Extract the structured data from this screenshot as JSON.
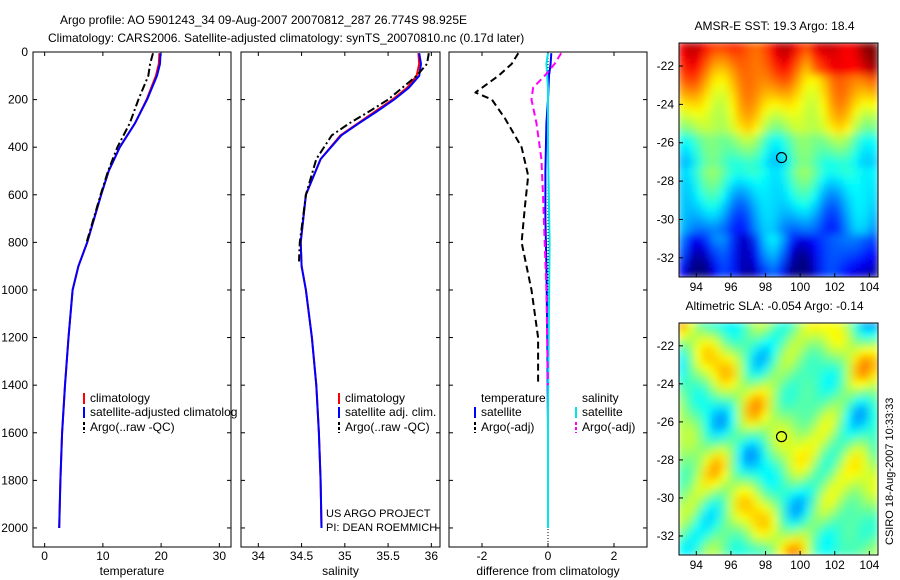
{
  "figure": {
    "title_line1": "Argo profile: AO 5901243_34 09-Aug-2007 20070812_287 26.774S 98.925E",
    "title_line2": "Climatology: CARS2006. Satellite-adjusted climatology: synTS_20070810.nc (0.17d later)",
    "credit": "CSIRO 18-Aug-2007 10:33:33",
    "project_line1": "US ARGO PROJECT",
    "project_line2": "PI: DEAN ROEMMICH"
  },
  "colors": {
    "climatology": "#ff0000",
    "satellite": "#0000ff",
    "argo": "#000000",
    "satellite_salinity": "#00e5e5",
    "argo_salinity_adj": "#ff00ff"
  },
  "chart_data": [
    {
      "id": "temperature",
      "type": "line",
      "xlabel": "temperature",
      "ylabel": "",
      "xlim": [
        -2,
        32
      ],
      "ylim": [
        2080,
        0
      ],
      "y_reversed": true,
      "xticks": [
        0,
        10,
        20,
        30
      ],
      "yticks": [
        0,
        200,
        400,
        600,
        800,
        1000,
        1200,
        1400,
        1600,
        1800,
        2000
      ],
      "legend": [
        "climatology",
        "satellite-adjusted climatolog",
        "Argo(..raw -QC)"
      ],
      "legend_position": "lower-right",
      "series": [
        {
          "name": "climatology",
          "style": "solid",
          "color": "#ff0000",
          "x": [
            19.7,
            19.6,
            19.1,
            17.5,
            15.5,
            12.9,
            11.0,
            9.7,
            7.3,
            5.8,
            4.8,
            4.1,
            3.5,
            3.0,
            2.7,
            2.5
          ],
          "y": [
            5,
            50,
            100,
            200,
            300,
            400,
            500,
            600,
            800,
            900,
            1000,
            1200,
            1400,
            1600,
            1800,
            2000
          ]
        },
        {
          "name": "satellite-adjusted climatolog",
          "style": "solid",
          "color": "#0000ff",
          "x": [
            19.9,
            19.8,
            19.3,
            17.6,
            15.5,
            12.9,
            11.0,
            9.7,
            7.3,
            5.8,
            4.8,
            4.1,
            3.5,
            3.0,
            2.7,
            2.5
          ],
          "y": [
            5,
            50,
            100,
            200,
            300,
            400,
            500,
            600,
            800,
            900,
            1000,
            1200,
            1400,
            1600,
            1800,
            2000
          ]
        },
        {
          "name": "Argo(..raw -QC)",
          "style": "dashdot",
          "color": "#000000",
          "x": [
            18.6,
            18.1,
            17.8,
            16.1,
            14.6,
            12.5,
            10.9,
            9.6,
            7.2
          ],
          "y": [
            5,
            50,
            100,
            200,
            300,
            400,
            500,
            600,
            800
          ]
        }
      ]
    },
    {
      "id": "salinity",
      "type": "line",
      "xlabel": "salinity",
      "ylabel": "",
      "xlim": [
        33.8,
        36.1
      ],
      "ylim": [
        2080,
        0
      ],
      "y_reversed": true,
      "xticks": [
        34,
        34.5,
        35,
        35.5,
        36
      ],
      "legend": [
        "climatology",
        "satellite adj. clim.",
        "Argo(..raw -QC)"
      ],
      "legend_position": "lower-right",
      "series": [
        {
          "name": "climatology",
          "style": "solid",
          "color": "#ff0000",
          "x": [
            35.85,
            35.86,
            35.83,
            35.72,
            35.55,
            35.35,
            35.15,
            34.95,
            34.72,
            34.55,
            34.49,
            34.5,
            34.55,
            34.62,
            34.67,
            34.7,
            34.72,
            34.73
          ],
          "y": [
            5,
            50,
            100,
            150,
            200,
            250,
            300,
            350,
            450,
            600,
            800,
            900,
            1000,
            1200,
            1400,
            1600,
            1800,
            2000
          ]
        },
        {
          "name": "satellite adj. clim.",
          "style": "solid",
          "color": "#0000ff",
          "x": [
            35.86,
            35.88,
            35.86,
            35.74,
            35.57,
            35.37,
            35.16,
            34.96,
            34.72,
            34.55,
            34.49,
            34.5,
            34.55,
            34.62,
            34.67,
            34.7,
            34.72,
            34.73
          ],
          "y": [
            5,
            50,
            100,
            150,
            200,
            250,
            300,
            350,
            450,
            600,
            800,
            900,
            1000,
            1200,
            1400,
            1600,
            1800,
            2000
          ]
        },
        {
          "name": "Argo(..raw -QC)",
          "style": "dashdot",
          "color": "#000000",
          "x": [
            35.97,
            35.95,
            35.83,
            35.5,
            35.28,
            35.05,
            34.85,
            34.67,
            34.55,
            34.48,
            34.47
          ],
          "y": [
            5,
            50,
            100,
            200,
            250,
            300,
            350,
            450,
            600,
            800,
            880
          ]
        }
      ]
    },
    {
      "id": "difference",
      "type": "line",
      "xlabel": "difference from climatology",
      "ylabel": "",
      "xlim": [
        -3,
        3
      ],
      "ylim": [
        2080,
        0
      ],
      "y_reversed": true,
      "xticks": [
        -2,
        0,
        2
      ],
      "legend": [
        "temperature",
        "salinity",
        "satellite",
        "satellite",
        "Argo(-adj)",
        "Argo(-adj)"
      ],
      "legend_position": "lower-center",
      "series": [
        {
          "name": "temperature satellite",
          "style": "solid",
          "color": "#0000ff",
          "x": [
            0.1,
            0.08,
            0.03,
            0.0,
            -0.05,
            -0.08,
            -0.08,
            -0.05,
            -0.02,
            0.0,
            0.0
          ],
          "y": [
            5,
            50,
            100,
            200,
            300,
            500,
            700,
            900,
            1200,
            1600,
            2000
          ]
        },
        {
          "name": "temperature Argo(-adj)",
          "style": "dashed",
          "color": "#000000",
          "x": [
            -0.9,
            -1.1,
            -1.5,
            -2.2,
            -1.7,
            -1.3,
            -0.8,
            -0.6,
            -0.7,
            -0.8,
            -0.5,
            -0.3,
            -0.3
          ],
          "y": [
            5,
            50,
            100,
            170,
            200,
            280,
            400,
            520,
            650,
            800,
            1000,
            1200,
            1400
          ]
        },
        {
          "name": "salinity satellite",
          "style": "solid",
          "color": "#00e5e5",
          "x": [
            0.0,
            -0.05,
            0.0,
            0.0,
            0.05,
            0.0,
            0.0
          ],
          "y": [
            5,
            50,
            150,
            400,
            800,
            1500,
            2000
          ]
        },
        {
          "name": "salinity Argo(-adj)",
          "style": "dashed",
          "color": "#ff00ff",
          "x": [
            0.4,
            0.2,
            -0.1,
            -0.45,
            -0.5,
            -0.35,
            -0.2,
            -0.15,
            -0.1,
            -0.05,
            0.0
          ],
          "y": [
            5,
            50,
            100,
            150,
            200,
            300,
            450,
            600,
            800,
            1000,
            1400
          ]
        }
      ]
    },
    {
      "id": "sst-map",
      "type": "heatmap",
      "title": "AMSR-E SST: 19.3 Argo: 18.4",
      "xlim": [
        93,
        104.5
      ],
      "ylim": [
        -33,
        -20.8
      ],
      "xticks": [
        94,
        96,
        98,
        100,
        102,
        104
      ],
      "yticks": [
        -22,
        -24,
        -26,
        -28,
        -30,
        -32
      ],
      "marker": {
        "lon": 98.925,
        "lat": -26.774
      }
    },
    {
      "id": "sla-map",
      "type": "heatmap",
      "title": "Altimetric SLA: -0.054 Argo: -0.14",
      "xlim": [
        93,
        104.5
      ],
      "ylim": [
        -33,
        -20.8
      ],
      "xticks": [
        94,
        96,
        98,
        100,
        102,
        104
      ],
      "yticks": [
        -22,
        -24,
        -26,
        -28,
        -30,
        -32
      ],
      "marker": {
        "lon": 98.925,
        "lat": -26.774
      }
    }
  ]
}
